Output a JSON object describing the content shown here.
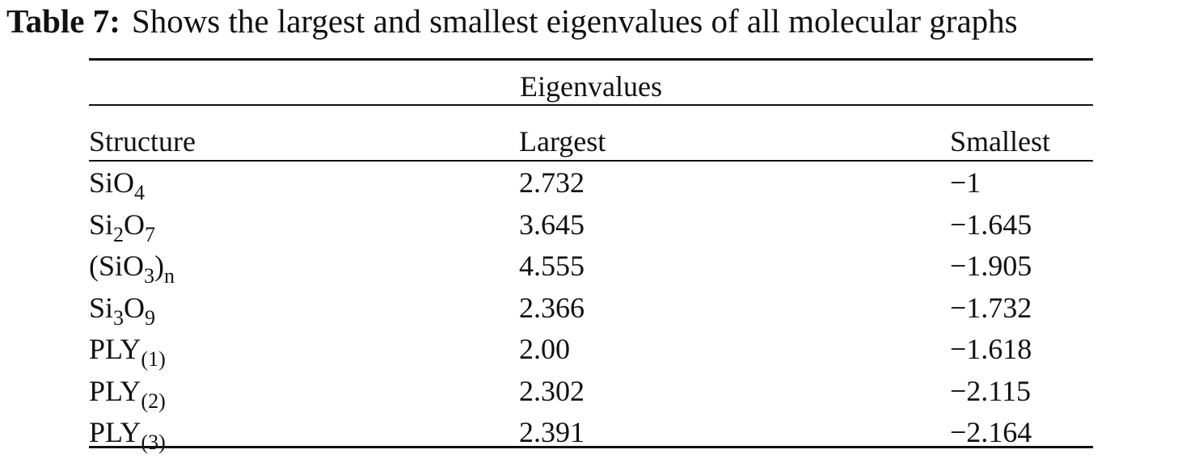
{
  "caption": {
    "label": "Table 7:",
    "text": "Shows the largest and smallest eigenvalues of all molecular graphs"
  },
  "table": {
    "group_header": "Eigenvalues",
    "columns": [
      "Structure",
      "Largest",
      "Smallest"
    ],
    "rows": [
      {
        "structure": [
          {
            "base": "SiO",
            "sub": "4"
          }
        ],
        "largest": "2.732",
        "smallest": "−1"
      },
      {
        "structure": [
          {
            "base": "Si",
            "sub": "2"
          },
          {
            "base": "O",
            "sub": "7"
          }
        ],
        "largest": "3.645",
        "smallest": "−1.645"
      },
      {
        "structure": [
          {
            "base": "(SiO",
            "sub": "3"
          },
          {
            "base": ")",
            "sub": "n"
          }
        ],
        "largest": "4.555",
        "smallest": "−1.905"
      },
      {
        "structure": [
          {
            "base": "Si",
            "sub": "3"
          },
          {
            "base": "O",
            "sub": "9"
          }
        ],
        "largest": "2.366",
        "smallest": "−1.732"
      },
      {
        "structure": [
          {
            "base": "PLY",
            "sub": "(1)"
          }
        ],
        "largest": "2.00",
        "smallest": "−1.618"
      },
      {
        "structure": [
          {
            "base": "PLY",
            "sub": "(2)"
          }
        ],
        "largest": "2.302",
        "smallest": "−2.115"
      },
      {
        "structure": [
          {
            "base": "PLY",
            "sub": "(3)"
          }
        ],
        "largest": "2.391",
        "smallest": "−2.164"
      }
    ]
  }
}
